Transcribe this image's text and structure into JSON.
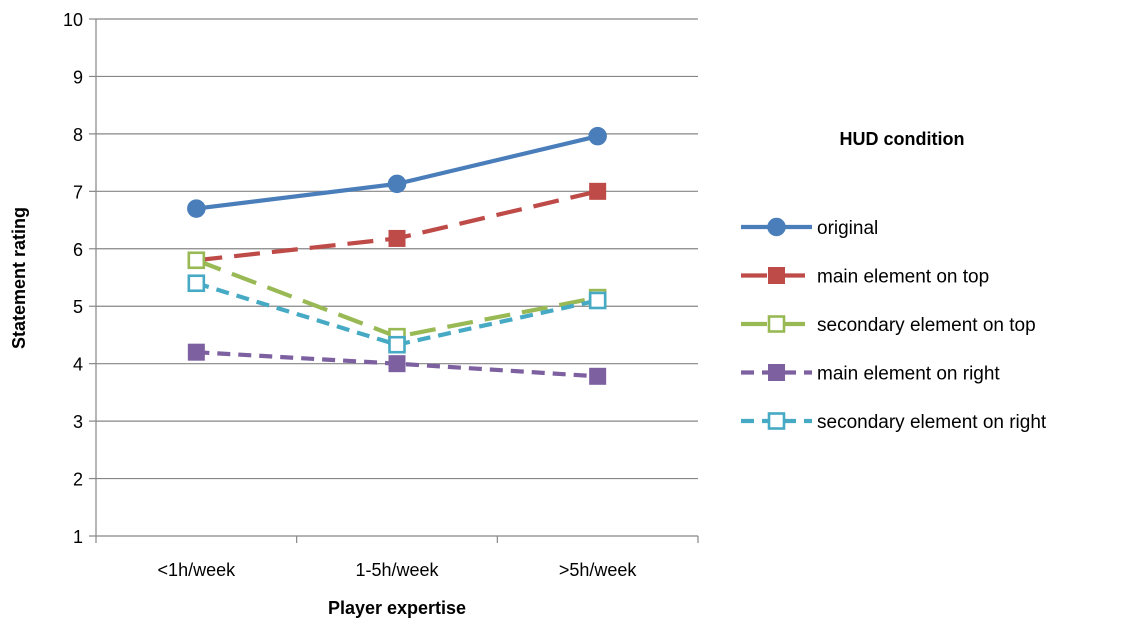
{
  "chart_data": {
    "type": "line",
    "categories": [
      "<1h/week",
      "1-5h/week",
      ">5h/week"
    ],
    "xlabel": "Player expertise",
    "ylabel": "Statement rating",
    "ylim": [
      1,
      10
    ],
    "yticks": [
      1,
      2,
      3,
      4,
      5,
      6,
      7,
      8,
      9,
      10
    ],
    "grid": "horizontal",
    "legend": {
      "title": "HUD condition",
      "placement": "right"
    },
    "series": [
      {
        "name": "original",
        "values": [
          6.7,
          7.13,
          7.96
        ],
        "color": "#4a7ebb",
        "dash": "solid",
        "marker": "circle",
        "filled": true
      },
      {
        "name": "main element on top",
        "values": [
          5.8,
          6.18,
          7.0
        ],
        "color": "#be4b48",
        "dash": "long-dash",
        "marker": "square",
        "filled": true
      },
      {
        "name": "secondary element on top",
        "values": [
          5.8,
          4.47,
          5.15
        ],
        "color": "#98b954",
        "dash": "long-dash",
        "marker": "square",
        "filled": false
      },
      {
        "name": "main element on right",
        "values": [
          4.2,
          4.0,
          3.78
        ],
        "color": "#7d60a0",
        "dash": "short-dash",
        "marker": "square",
        "filled": true
      },
      {
        "name": "secondary element on right",
        "values": [
          5.4,
          4.33,
          5.1
        ],
        "color": "#46aac5",
        "dash": "short-dash",
        "marker": "square",
        "filled": false
      }
    ]
  }
}
